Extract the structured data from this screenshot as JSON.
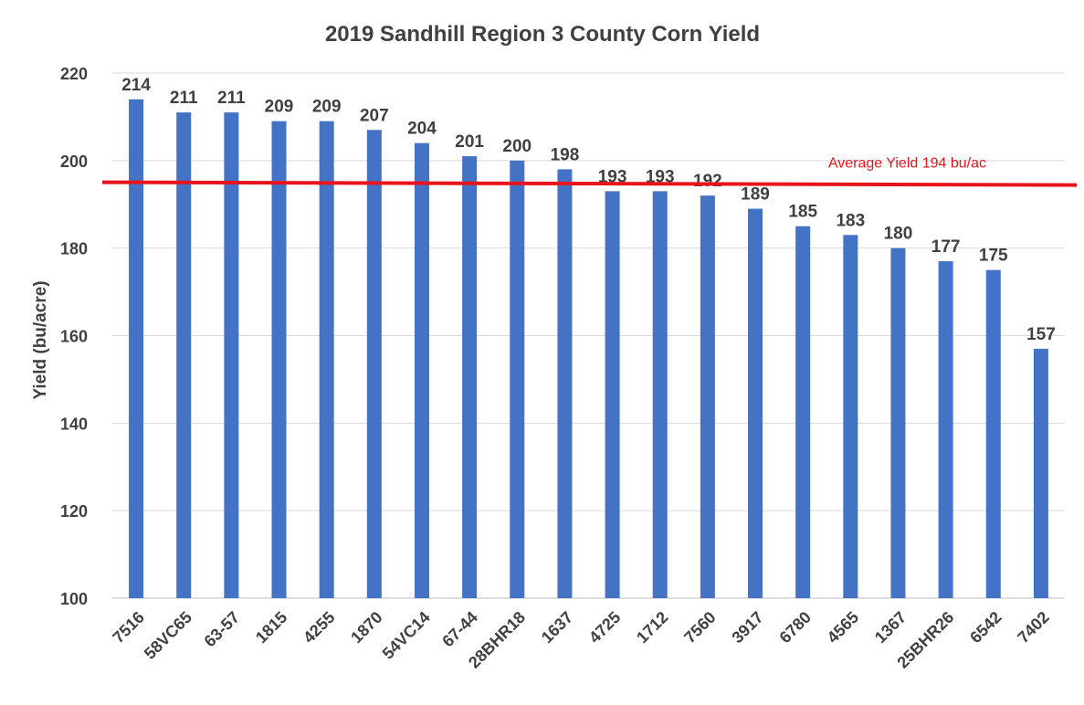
{
  "chart_data": {
    "type": "bar",
    "title": "2019 Sandhill Region 3 County Corn Yield",
    "xlabel": "",
    "ylabel": "Yield (bu/acre)",
    "ylim": [
      100,
      220
    ],
    "yticks": [
      100,
      120,
      140,
      160,
      180,
      200,
      220
    ],
    "grid": true,
    "categories": [
      "7516",
      "58VC65",
      "63-57",
      "1815",
      "4255",
      "1870",
      "54VC14",
      "67-44",
      "28BHR18",
      "1637",
      "4725",
      "1712",
      "7560",
      "3917",
      "6780",
      "4565",
      "1367",
      "25BHR26",
      "6542",
      "7402"
    ],
    "values": [
      214,
      211,
      211,
      209,
      209,
      207,
      204,
      201,
      200,
      198,
      193,
      193,
      192,
      189,
      185,
      183,
      180,
      177,
      175,
      157
    ],
    "data_labels": [
      "214",
      "211",
      "211",
      "209",
      "209",
      "207",
      "204",
      "201",
      "200",
      "198",
      "193",
      "193",
      "192",
      "189",
      "185",
      "183",
      "180",
      "177",
      "175",
      "157"
    ],
    "bar_color": "#4472C4",
    "average_line": {
      "value": 194,
      "label": "Average Yield 194 bu/ac",
      "color": "#E8141C"
    }
  }
}
